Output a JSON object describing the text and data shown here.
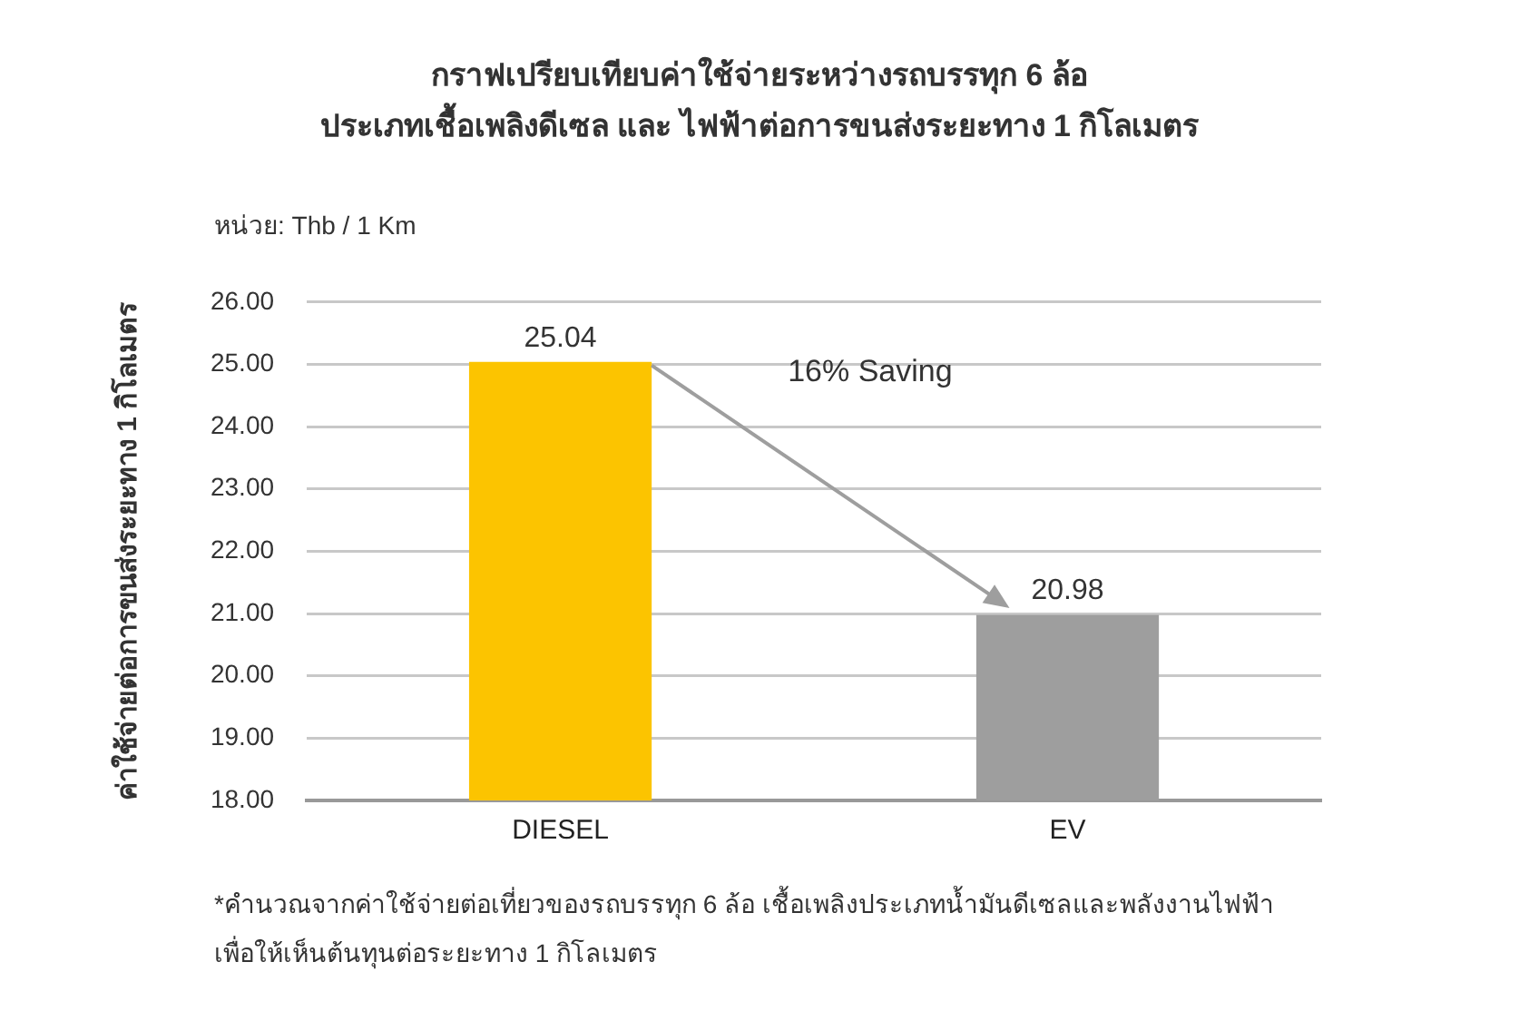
{
  "chart_data": {
    "type": "bar",
    "title": "กราฟเปรียบเทียบค่าใช้จ่ายระหว่างรถบรรทุก 6 ล้อ\nประเภทเชื้อเพลิงดีเซล และ ไฟฟ้าต่อการขนส่งระยะทาง 1 กิโลเมตร",
    "subtitle": "หน่วย: Thb / 1 Km",
    "ylabel": "ค่าใช้จ่ายต่อการขนส่งระยะทาง 1 กิโลเมตร",
    "categories": [
      "DIESEL",
      "EV"
    ],
    "values": [
      25.04,
      20.98
    ],
    "colors": [
      "#fcc400",
      "#9e9e9e"
    ],
    "ylim": [
      18,
      26
    ],
    "yticks": [
      {
        "value": 18,
        "label": "18.00"
      },
      {
        "value": 19,
        "label": "19.00"
      },
      {
        "value": 20,
        "label": "20.00"
      },
      {
        "value": 21,
        "label": "21.00"
      },
      {
        "value": 22,
        "label": "22.00"
      },
      {
        "value": 23,
        "label": "23.00"
      },
      {
        "value": 24,
        "label": "24.00"
      },
      {
        "value": 25,
        "label": "25.00"
      },
      {
        "value": 26,
        "label": "26.00"
      }
    ],
    "grid": "y",
    "data_labels": true,
    "annotations": [
      "16% Saving",
      "*คำนวณจากค่าใช้จ่ายต่อเที่ยวของรถบรรทุก 6 ล้อ เชื้อเพลิงประเภทน้ำมันดีเซลและพลังงานไฟฟ้า\nเพื่อให้เห็นต้นทุนต่อระยะทาง 1 กิโลเมตร"
    ]
  }
}
